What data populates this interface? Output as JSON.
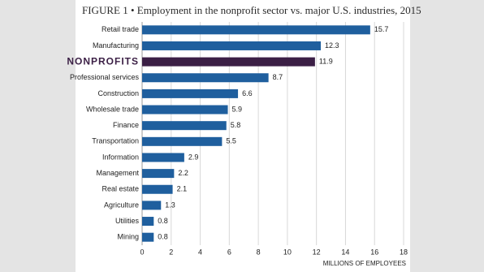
{
  "chart_data": {
    "type": "bar",
    "orientation": "horizontal",
    "title": "FIGURE 1 • Employment in the nonprofit sector vs. major U.S. industries, 2015",
    "categories": [
      "Retail trade",
      "Manufacturing",
      "NONPROFITS",
      "Professional services",
      "Construction",
      "Wholesale trade",
      "Finance",
      "Transportation",
      "Information",
      "Management",
      "Real estate",
      "Agriculture",
      "Utilities",
      "Mining"
    ],
    "values": [
      15.7,
      12.3,
      11.9,
      8.7,
      6.6,
      5.9,
      5.8,
      5.5,
      2.9,
      2.2,
      2.1,
      1.3,
      0.8,
      0.8
    ],
    "colors": [
      "#1f5f9e",
      "#1f5f9e",
      "#3b1f45",
      "#1f5f9e",
      "#1f5f9e",
      "#1f5f9e",
      "#1f5f9e",
      "#1f5f9e",
      "#1f5f9e",
      "#1f5f9e",
      "#1f5f9e",
      "#1f5f9e",
      "#1f5f9e",
      "#1f5f9e"
    ],
    "xlabel": "MILLIONS OF EMPLOYEES",
    "xlim": [
      0,
      18
    ],
    "xticks": [
      0,
      2,
      4,
      6,
      8,
      10,
      12,
      14,
      16,
      18
    ],
    "grid": true
  }
}
